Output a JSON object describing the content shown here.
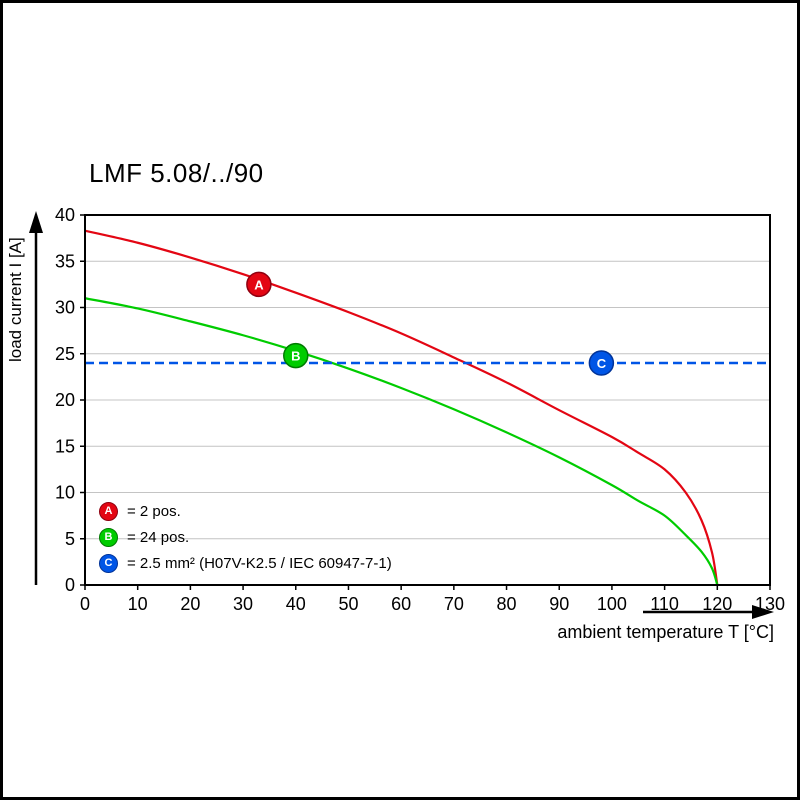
{
  "chart_data": {
    "type": "line",
    "title": "LMF 5.08/../90",
    "xlabel": "ambient temperature T [°C]",
    "ylabel": "load current I [A]",
    "xlim": [
      0,
      130
    ],
    "ylim": [
      0,
      40
    ],
    "xticks": [
      0,
      10,
      20,
      30,
      40,
      50,
      60,
      70,
      80,
      90,
      100,
      110,
      120,
      130
    ],
    "yticks": [
      0,
      5,
      10,
      15,
      20,
      25,
      30,
      35,
      40
    ],
    "grid": "horizontal-only",
    "legend_position": "bottom-left-inside",
    "series": [
      {
        "name": "A",
        "label": "2 pos.",
        "color": "#e30613",
        "type": "curve",
        "x": [
          0,
          10,
          20,
          30,
          40,
          50,
          60,
          70,
          80,
          90,
          100,
          105,
          110,
          114,
          117,
          119,
          120
        ],
        "y": [
          38.3,
          37.0,
          35.4,
          33.6,
          31.6,
          29.5,
          27.2,
          24.6,
          21.9,
          18.9,
          16.0,
          14.3,
          12.5,
          10.0,
          7.0,
          3.5,
          0
        ]
      },
      {
        "name": "B",
        "label": "24 pos.",
        "color": "#00cc00",
        "type": "curve",
        "x": [
          0,
          10,
          20,
          30,
          40,
          50,
          60,
          70,
          80,
          90,
          100,
          105,
          110,
          114,
          117,
          119,
          120
        ],
        "y": [
          31.0,
          29.9,
          28.5,
          27.0,
          25.3,
          23.4,
          21.3,
          19.0,
          16.5,
          13.8,
          10.8,
          9.1,
          7.5,
          5.4,
          3.6,
          1.8,
          0
        ]
      },
      {
        "name": "C",
        "label": "2.5 mm² (H07V-K2.5 / IEC 60947-7-1)",
        "color": "#0055e6",
        "type": "hline",
        "y": 24,
        "dashed": true
      }
    ],
    "markers": [
      {
        "label": "A",
        "x": 33,
        "y": 32.5,
        "color": "#e30613",
        "ring": "#8f0010"
      },
      {
        "label": "B",
        "x": 40,
        "y": 24.8,
        "color": "#00cc00",
        "ring": "#007a00"
      },
      {
        "label": "C",
        "x": 98,
        "y": 24.0,
        "color": "#0055e6",
        "ring": "#003399"
      }
    ]
  },
  "legend": {
    "items": [
      {
        "letter": "A",
        "color": "#e30613",
        "ring": "#8f0010",
        "text": "= 2 pos."
      },
      {
        "letter": "B",
        "color": "#00cc00",
        "ring": "#007a00",
        "text": "= 24 pos."
      },
      {
        "letter": "C",
        "color": "#0055e6",
        "ring": "#003399",
        "text": "= 2.5 mm² (H07V-K2.5 / IEC 60947-7-1)"
      }
    ]
  }
}
